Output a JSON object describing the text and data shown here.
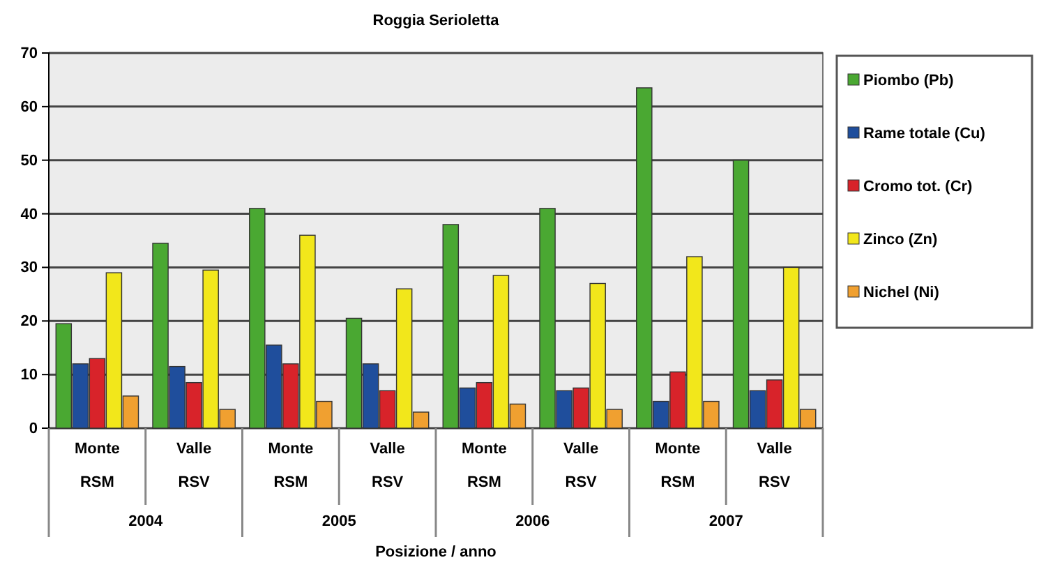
{
  "chart_data": {
    "type": "bar",
    "title": "Roggia Serioletta",
    "xlabel": "Posizione / anno",
    "categories": [
      "Monte\nRSM",
      "Valle\nRSV",
      "Monte\nRSM",
      "Valle\nRSV",
      "Monte\nRSM",
      "Valle\nRSV",
      "Monte\nRSM",
      "Valle\nRSV"
    ],
    "annotations": [
      "2004",
      "2005",
      "2006",
      "2007"
    ],
    "series": [
      {
        "name": "Piombo (Pb)",
        "color": "#4aa832",
        "values": [
          19.5,
          34.5,
          41,
          20.5,
          38,
          41,
          63.5,
          50
        ]
      },
      {
        "name": "Rame totale (Cu)",
        "color": "#1f4e9c",
        "values": [
          12,
          11.5,
          15.5,
          12,
          7.5,
          7,
          5,
          7
        ]
      },
      {
        "name": "Cromo tot. (Cr)",
        "color": "#d8232a",
        "values": [
          13,
          8.5,
          12,
          7,
          8.5,
          7.5,
          10.5,
          9
        ]
      },
      {
        "name": "Zinco (Zn)",
        "color": "#f2e71b",
        "values": [
          29,
          29.5,
          36,
          26,
          28.5,
          27,
          32,
          30
        ]
      },
      {
        "name": "Nichel (Ni)",
        "color": "#f0a030",
        "values": [
          6,
          3.5,
          5,
          3,
          4.5,
          3.5,
          5,
          3.5
        ]
      }
    ],
    "ylim": [
      0,
      70
    ],
    "yticks": [
      0,
      10,
      20,
      30,
      40,
      50,
      60,
      70
    ],
    "grid": "y",
    "legend": "right"
  }
}
